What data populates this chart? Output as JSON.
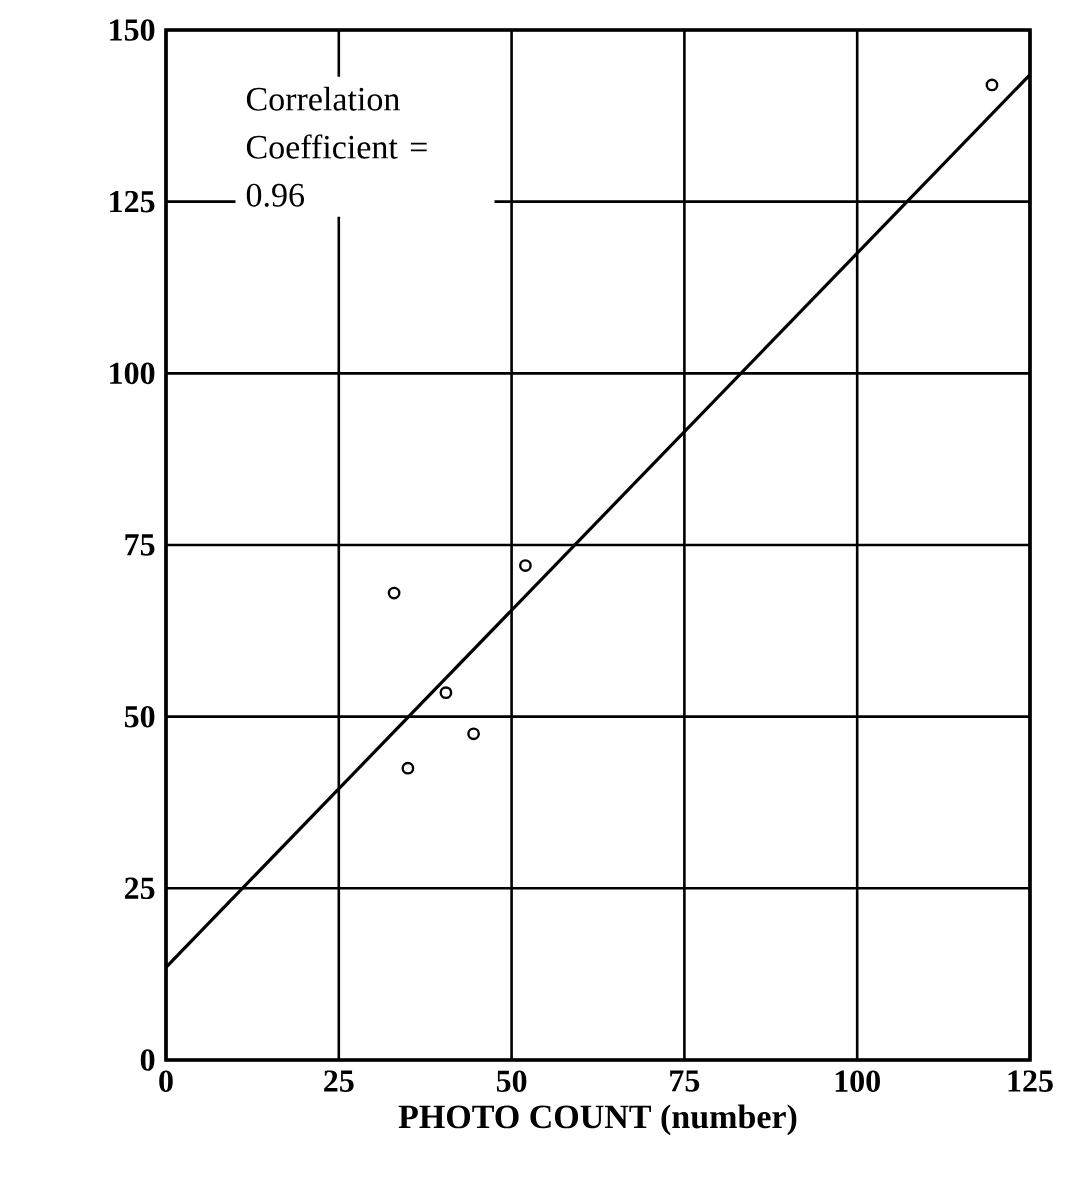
{
  "chart_data": {
    "type": "scatter",
    "xlabel": "PHOTO COUNT (number)",
    "annotations": [
      "Correlation Coefficient = 0.96"
    ],
    "xlim": [
      0,
      125
    ],
    "ylim": [
      0,
      150
    ],
    "xticks": [
      0,
      25,
      50,
      75,
      100,
      125
    ],
    "yticks": [
      0,
      25,
      50,
      75,
      100,
      125,
      150
    ],
    "grid": true,
    "marker": "circle",
    "series": [
      {
        "color": "#000000",
        "x": [
          33,
          35,
          40.5,
          44.5,
          52,
          119.5
        ],
        "values": [
          68,
          42.5,
          53.5,
          47.5,
          72,
          142
        ]
      },
      {
        "type": "line",
        "color": "#000000",
        "marker": "none",
        "x": [
          0,
          125
        ],
        "values": [
          13.5,
          143.5
        ]
      }
    ]
  }
}
